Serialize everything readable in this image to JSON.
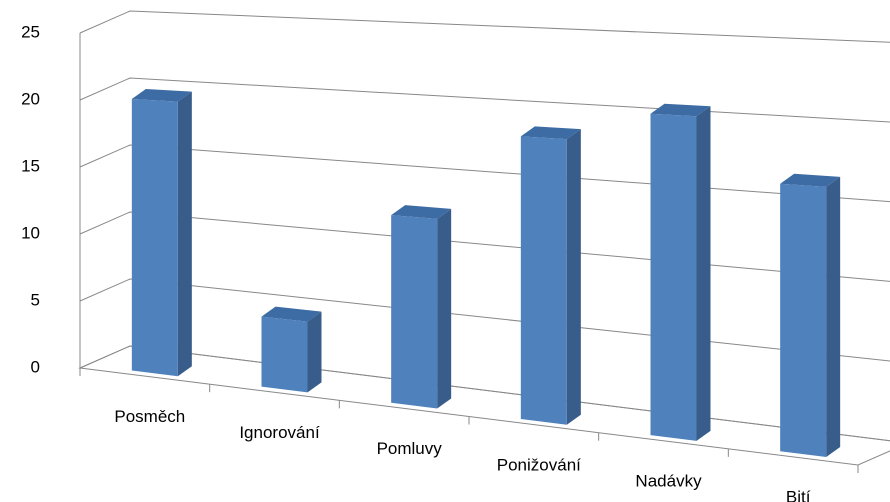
{
  "chart_data": {
    "type": "bar3d",
    "categories": [
      "Posměch",
      "Ignorování",
      "Pomluvy",
      "Ponižování",
      "Nadávky",
      "Bití"
    ],
    "values": [
      20,
      5,
      13,
      19,
      21,
      17
    ],
    "color": "#4f81bd",
    "ylim": [
      0,
      25
    ],
    "yticks": [
      0,
      5,
      10,
      15,
      20,
      25
    ],
    "grid": true
  }
}
